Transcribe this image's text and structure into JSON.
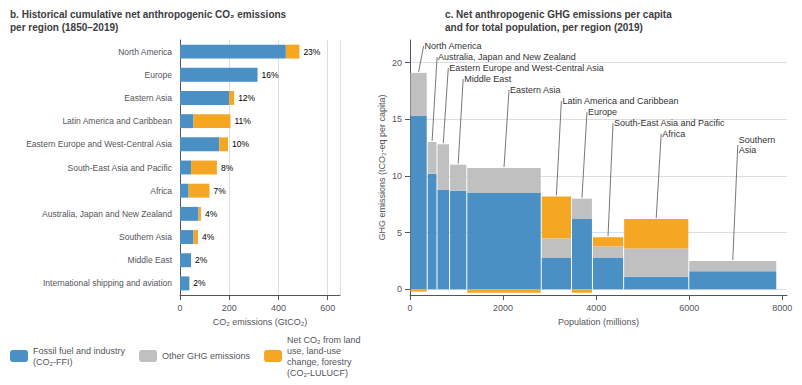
{
  "chart_data": [
    {
      "type": "bar",
      "orientation": "horizontal",
      "stacked": true,
      "title": "b. Historical cumulative net anthropogenic CO₂ emissions\nper region (1850–2019)",
      "xlabel": "CO₂ emissions (GtCO₂)",
      "categories": [
        "North America",
        "Europe",
        "Eastern Asia",
        "Latin America and Caribbean",
        "Eastern Europe and West-Central Asia",
        "South-East Asia and Pacific",
        "Africa",
        "Australia, Japan and New Zealand",
        "Southern Asia",
        "Middle East",
        "International shipping and aviation"
      ],
      "series": [
        {
          "name": "Fossil fuel and industry\n(CO₂-FFI)",
          "color": "#4A90C4",
          "values": [
            430,
            315,
            200,
            55,
            160,
            45,
            35,
            75,
            55,
            45,
            38
          ]
        },
        {
          "name": "Net CO₂ from land\nuse, land-use\nchange, forestry\n(CO₂-LULUCF)",
          "color": "#F5A623",
          "values": [
            55,
            0,
            20,
            150,
            35,
            105,
            85,
            10,
            18,
            0,
            0
          ]
        }
      ],
      "annotations": [
        "23%",
        "16%",
        "12%",
        "11%",
        "10%",
        "8%",
        "7%",
        "4%",
        "4%",
        "2%",
        "2%"
      ],
      "xlim": [
        0,
        650
      ],
      "xticks": [
        0,
        200,
        400,
        600
      ],
      "grid": true,
      "legend": "lower left"
    },
    {
      "type": "bar",
      "stacked": true,
      "title": "c. Net anthropogenic GHG emissions per capita\nand for total population, per region (2019)",
      "xlabel": "Population (millions)",
      "ylabel": "GHG emissions (tCO₂-eq per capita)",
      "categories": [
        "North America",
        "Australia, Japan and New Zealand",
        "Eastern Europe and West-Central Asia",
        "Middle East",
        "Eastern Asia",
        "Latin America and Caribbean",
        "Europe",
        "South-East Asia and Pacific",
        "Africa",
        "Southern\nAsia"
      ],
      "widths": [
        370,
        210,
        270,
        370,
        1600,
        650,
        450,
        670,
        1400,
        1890
      ],
      "series": [
        {
          "name": "Fossil fuel and industry\n(CO₂-FFI)",
          "color": "#4A90C4",
          "values": [
            15.3,
            10.2,
            8.8,
            8.7,
            8.5,
            2.8,
            6.2,
            2.8,
            1.1,
            1.6
          ]
        },
        {
          "name": "Other GHG emissions",
          "color": "#C0C0C0",
          "values": [
            3.8,
            2.8,
            4.0,
            2.3,
            2.2,
            1.7,
            1.8,
            1.0,
            2.5,
            0.9
          ]
        },
        {
          "name": "Net CO₂ from land\nuse, land-use\nchange, forestry\n(CO₂-LULUCF)",
          "color": "#F5A623",
          "values": [
            -0.2,
            0.0,
            0.0,
            0.0,
            -0.3,
            3.7,
            -0.3,
            0.8,
            2.6,
            0.0
          ]
        }
      ],
      "xlim": [
        0,
        8100
      ],
      "xticks": [
        0,
        2000,
        4000,
        6000,
        8000
      ],
      "ylim": [
        -0.5,
        22
      ],
      "yticks": [
        0,
        5,
        10,
        15,
        20
      ],
      "grid": true
    }
  ]
}
